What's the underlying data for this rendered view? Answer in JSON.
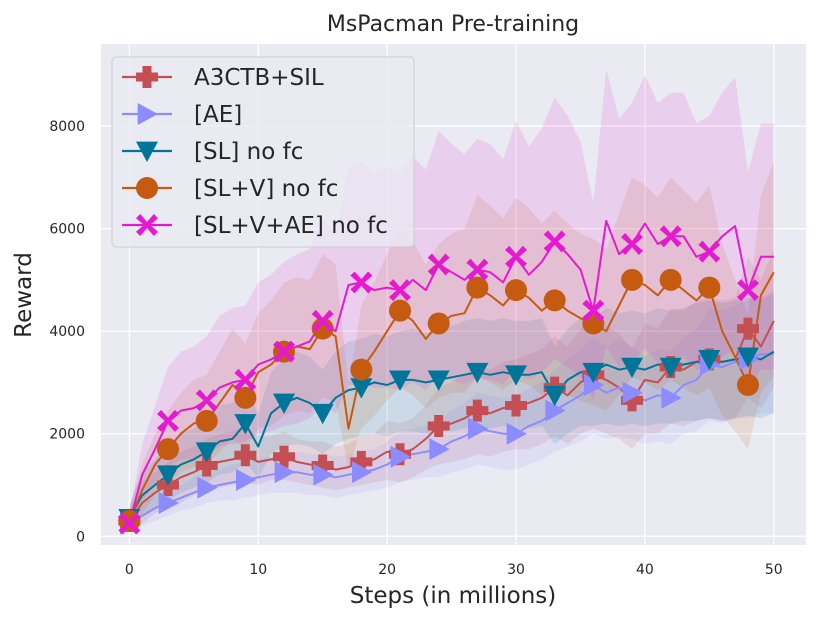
{
  "chart_data": {
    "type": "line",
    "title": "MsPacman Pre-training",
    "xlabel": "Steps (in millions)",
    "ylabel": "Reward",
    "xlim": [
      -2.2,
      52.5
    ],
    "ylim": [
      -170,
      9600
    ],
    "xticks": [
      0,
      10,
      20,
      30,
      40,
      50
    ],
    "yticks": [
      0,
      2000,
      4000,
      6000,
      8000
    ],
    "grid": true,
    "legend_position": "top-left",
    "series": [
      {
        "name": "A3CTB+SIL",
        "color": "#c44e52",
        "marker": "plus",
        "x": [
          0,
          1,
          2,
          3,
          4,
          5,
          6,
          7,
          8,
          9,
          10,
          11,
          12,
          13,
          14,
          15,
          16,
          17,
          18,
          19,
          20,
          21,
          22,
          23,
          24,
          25,
          26,
          27,
          28,
          29,
          30,
          31,
          32,
          33,
          34,
          35,
          36,
          37,
          38,
          39,
          40,
          41,
          42,
          43,
          44,
          45,
          46,
          47,
          48,
          49,
          50
        ],
        "values": [
          300,
          650,
          850,
          1000,
          1150,
          1250,
          1380,
          1450,
          1500,
          1580,
          1450,
          1500,
          1550,
          1450,
          1400,
          1380,
          1300,
          1350,
          1450,
          1500,
          1650,
          1600,
          1700,
          1900,
          2150,
          2200,
          2300,
          2450,
          2400,
          2500,
          2550,
          2600,
          2700,
          2900,
          2750,
          3000,
          3150,
          3050,
          2900,
          2650,
          3050,
          3000,
          3300,
          3250,
          3400,
          3450,
          3400,
          3450,
          4050,
          3700,
          4200
        ],
        "lower": [
          120,
          250,
          450,
          550,
          650,
          800,
          900,
          950,
          1000,
          1050,
          1000,
          1100,
          1100,
          1050,
          1000,
          950,
          900,
          950,
          1000,
          1050,
          1100,
          1050,
          1150,
          1300,
          1400,
          1450,
          1500,
          1600,
          1550,
          1650,
          1700,
          1700,
          1800,
          1950,
          1800,
          2000,
          2100,
          2000,
          1900,
          1700,
          2000,
          2000,
          2200,
          2150,
          2250,
          2300,
          2250,
          2300,
          2700,
          2500,
          2900
        ],
        "upper": [
          500,
          1050,
          1250,
          1450,
          1650,
          1750,
          1900,
          2000,
          2050,
          2150,
          1950,
          1950,
          2050,
          1900,
          1850,
          1850,
          1750,
          1800,
          1950,
          2000,
          2250,
          2200,
          2300,
          2550,
          2900,
          3000,
          3150,
          3350,
          3250,
          3400,
          3450,
          3550,
          3650,
          3900,
          3700,
          4050,
          4250,
          4100,
          3950,
          3650,
          4150,
          4050,
          4450,
          4400,
          4600,
          4650,
          4600,
          4650,
          5450,
          5000,
          5600
        ],
        "marker_every": 3,
        "marker_indices": [
          0,
          3,
          6,
          9,
          12,
          15,
          18,
          21,
          24,
          27,
          30,
          33,
          36,
          39,
          42,
          45,
          48
        ]
      },
      {
        "name": "[AE]",
        "color": "#8c8cff",
        "marker": "triangle-right",
        "x": [
          0,
          1,
          2,
          3,
          4,
          5,
          6,
          7,
          8,
          9,
          10,
          11,
          12,
          13,
          14,
          15,
          16,
          17,
          18,
          19,
          20,
          21,
          22,
          23,
          24,
          25,
          26,
          27,
          28,
          29,
          30,
          31,
          32,
          33,
          34,
          35,
          36,
          37,
          38,
          39,
          40,
          41,
          42,
          43,
          44,
          45,
          46,
          47,
          48,
          49,
          50
        ],
        "values": [
          250,
          400,
          550,
          650,
          750,
          850,
          950,
          1000,
          1050,
          1100,
          1150,
          1200,
          1250,
          1250,
          1200,
          1200,
          1150,
          1200,
          1250,
          1300,
          1400,
          1550,
          1600,
          1650,
          1700,
          1850,
          1950,
          2100,
          2050,
          2000,
          2000,
          2150,
          2250,
          2450,
          2600,
          2750,
          2950,
          2800,
          2900,
          2800,
          2650,
          2750,
          2700,
          2950,
          3050,
          3350,
          3300,
          3400,
          3450,
          3550,
          3550
        ],
        "lower": [
          100,
          200,
          300,
          400,
          500,
          550,
          650,
          700,
          700,
          750,
          800,
          850,
          850,
          850,
          800,
          800,
          750,
          800,
          850,
          900,
          950,
          1050,
          1100,
          1150,
          1150,
          1250,
          1300,
          1400,
          1350,
          1300,
          1300,
          1400,
          1500,
          1650,
          1750,
          1850,
          2000,
          1900,
          1950,
          1900,
          1800,
          1850,
          1800,
          2000,
          2050,
          2250,
          2200,
          2300,
          2300,
          2400,
          2400
        ],
        "upper": [
          400,
          600,
          800,
          900,
          1000,
          1150,
          1250,
          1300,
          1400,
          1450,
          1500,
          1550,
          1650,
          1650,
          1600,
          1600,
          1550,
          1600,
          1650,
          1700,
          1850,
          2050,
          2100,
          2150,
          2250,
          2450,
          2600,
          2800,
          2750,
          2700,
          2700,
          2900,
          3000,
          3250,
          3450,
          3650,
          3900,
          3700,
          3850,
          3700,
          3500,
          3650,
          3600,
          3900,
          4050,
          4450,
          4400,
          4500,
          4600,
          4700,
          4700
        ],
        "marker_indices": [
          0,
          3,
          6,
          9,
          12,
          15,
          18,
          21,
          24,
          27,
          30,
          33,
          36,
          39,
          42,
          45,
          48
        ]
      },
      {
        "name": "[SL] no fc",
        "color": "#00759a",
        "marker": "triangle-down",
        "x": [
          0,
          1,
          2,
          3,
          4,
          5,
          6,
          7,
          8,
          9,
          10,
          11,
          12,
          13,
          14,
          15,
          16,
          17,
          18,
          19,
          20,
          21,
          22,
          23,
          24,
          25,
          26,
          27,
          28,
          29,
          30,
          31,
          32,
          33,
          34,
          35,
          36,
          37,
          38,
          39,
          40,
          41,
          42,
          43,
          44,
          45,
          46,
          47,
          48,
          49,
          50
        ],
        "values": [
          350,
          800,
          1000,
          1200,
          1400,
          1500,
          1650,
          1850,
          1900,
          2200,
          1750,
          2400,
          2600,
          2700,
          2600,
          2400,
          2700,
          2850,
          2900,
          3000,
          2950,
          3050,
          3050,
          3000,
          3050,
          3100,
          3150,
          3200,
          3150,
          3200,
          3150,
          3150,
          3200,
          2750,
          3050,
          3200,
          3200,
          3350,
          3250,
          3300,
          3250,
          3350,
          3300,
          3350,
          3400,
          3450,
          3400,
          3450,
          3500,
          3450,
          3600
        ],
        "lower": [
          150,
          400,
          550,
          700,
          850,
          950,
          1050,
          1200,
          1250,
          1450,
          1150,
          1600,
          1750,
          1800,
          1750,
          1600,
          1800,
          1900,
          1950,
          2000,
          1950,
          2050,
          2050,
          2000,
          2050,
          2050,
          2100,
          2150,
          2100,
          2150,
          2100,
          2100,
          2150,
          1800,
          2000,
          2150,
          2150,
          2200,
          2150,
          2200,
          2150,
          2200,
          2200,
          2250,
          2250,
          2300,
          2250,
          2300,
          2350,
          2300,
          2400
        ],
        "upper": [
          600,
          1250,
          1500,
          1800,
          2000,
          2100,
          2300,
          2550,
          2600,
          2950,
          2400,
          3200,
          3450,
          3600,
          3500,
          3250,
          3600,
          3800,
          3850,
          3950,
          3900,
          4000,
          4050,
          3950,
          4050,
          4100,
          4200,
          4250,
          4200,
          4250,
          4200,
          4200,
          4250,
          3700,
          4050,
          4250,
          4250,
          4450,
          4350,
          4400,
          4350,
          4450,
          4400,
          4450,
          4550,
          4600,
          4550,
          4600,
          4650,
          4600,
          4800
        ],
        "marker_indices": [
          0,
          3,
          6,
          9,
          12,
          15,
          18,
          21,
          24,
          27,
          30,
          33,
          36,
          39,
          42,
          45,
          48
        ]
      },
      {
        "name": "[SL+V] no fc",
        "color": "#c55a11",
        "marker": "circle",
        "x": [
          0,
          1,
          2,
          3,
          4,
          5,
          6,
          7,
          8,
          9,
          10,
          11,
          12,
          13,
          14,
          15,
          16,
          17,
          18,
          19,
          20,
          21,
          22,
          23,
          24,
          25,
          26,
          27,
          28,
          29,
          30,
          31,
          32,
          33,
          34,
          35,
          36,
          37,
          38,
          39,
          40,
          41,
          42,
          43,
          44,
          45,
          46,
          47,
          48,
          49,
          50
        ],
        "values": [
          300,
          900,
          1400,
          1700,
          2000,
          2200,
          2250,
          2600,
          2950,
          2700,
          3200,
          3350,
          3600,
          3700,
          3650,
          4050,
          3900,
          2100,
          3250,
          3600,
          4000,
          4400,
          4200,
          3850,
          4150,
          4300,
          4350,
          4850,
          4700,
          4500,
          4800,
          4650,
          4400,
          4600,
          4400,
          4250,
          4150,
          4000,
          4500,
          5000,
          4900,
          4700,
          5000,
          4800,
          4600,
          4850,
          4000,
          3500,
          2950,
          4700,
          5150
        ],
        "lower": [
          100,
          450,
          800,
          1000,
          1250,
          1350,
          1400,
          1650,
          1900,
          1700,
          2100,
          2150,
          2350,
          2450,
          2400,
          2700,
          2600,
          1300,
          2100,
          2350,
          2650,
          2900,
          2750,
          2500,
          2700,
          2800,
          2800,
          3100,
          3000,
          2850,
          3050,
          2950,
          2750,
          2900,
          2750,
          2650,
          2550,
          2450,
          2750,
          3100,
          3000,
          2850,
          3050,
          2900,
          2750,
          2900,
          2350,
          2050,
          1700,
          2800,
          3100
        ],
        "upper": [
          550,
          1400,
          2000,
          2450,
          2800,
          3050,
          3150,
          3600,
          4050,
          3750,
          4350,
          4600,
          4950,
          5050,
          5000,
          5500,
          5300,
          2950,
          4500,
          4950,
          5500,
          6000,
          5750,
          5300,
          5700,
          5900,
          6000,
          6650,
          6450,
          6200,
          6600,
          6400,
          6100,
          6350,
          6100,
          5900,
          5800,
          5600,
          6300,
          7000,
          6850,
          6600,
          7000,
          6750,
          6500,
          6850,
          5700,
          5000,
          4300,
          6650,
          7300
        ],
        "marker_indices": [
          0,
          3,
          6,
          9,
          12,
          15,
          18,
          21,
          24,
          27,
          30,
          33,
          36,
          39,
          42,
          45,
          48
        ]
      },
      {
        "name": "[SL+V+AE] no fc",
        "color": "#e519d0",
        "marker": "x",
        "x": [
          0,
          1,
          2,
          3,
          4,
          5,
          6,
          7,
          8,
          9,
          10,
          11,
          12,
          13,
          14,
          15,
          16,
          17,
          18,
          19,
          20,
          21,
          22,
          23,
          24,
          25,
          26,
          27,
          28,
          29,
          30,
          31,
          32,
          33,
          34,
          35,
          36,
          37,
          38,
          39,
          40,
          41,
          42,
          43,
          44,
          45,
          46,
          47,
          48,
          49,
          50
        ],
        "values": [
          250,
          1200,
          1700,
          2250,
          2450,
          2500,
          2650,
          2900,
          3000,
          3050,
          3350,
          3450,
          3600,
          3700,
          3800,
          4200,
          4000,
          4900,
          4950,
          4800,
          4850,
          4800,
          5000,
          4800,
          5300,
          5150,
          5000,
          5200,
          5150,
          4950,
          5450,
          5100,
          5350,
          5750,
          5500,
          5200,
          4400,
          6150,
          5500,
          5700,
          6100,
          5700,
          5850,
          5850,
          5450,
          5550,
          5850,
          6050,
          4800,
          5450,
          5450
        ],
        "lower": [
          80,
          700,
          1000,
          1350,
          1500,
          1500,
          1600,
          1750,
          1800,
          1850,
          2000,
          2050,
          2150,
          2200,
          2300,
          2550,
          2400,
          2950,
          2950,
          2900,
          2900,
          2850,
          3000,
          2850,
          3150,
          3050,
          2950,
          3100,
          3050,
          2950,
          3250,
          3050,
          3200,
          3450,
          3300,
          3100,
          2650,
          3700,
          3300,
          3400,
          3650,
          3400,
          3500,
          3500,
          3250,
          3300,
          3500,
          3650,
          2850,
          3250,
          3250
        ],
        "upper": [
          450,
          1800,
          2550,
          3300,
          3600,
          3700,
          3900,
          4300,
          4450,
          4500,
          4950,
          5100,
          5350,
          5500,
          5600,
          6200,
          5900,
          7200,
          7300,
          7100,
          7200,
          7100,
          7400,
          7150,
          7900,
          7650,
          7450,
          7750,
          7650,
          7350,
          8100,
          7600,
          7950,
          8550,
          8200,
          7700,
          6500,
          9100,
          8150,
          8450,
          9000,
          8450,
          8650,
          8650,
          8050,
          8200,
          8650,
          8950,
          7100,
          8050,
          8050
        ],
        "marker_indices": [
          0,
          3,
          6,
          9,
          12,
          15,
          18,
          21,
          24,
          27,
          30,
          33,
          36,
          39,
          42,
          45,
          48
        ]
      }
    ]
  }
}
